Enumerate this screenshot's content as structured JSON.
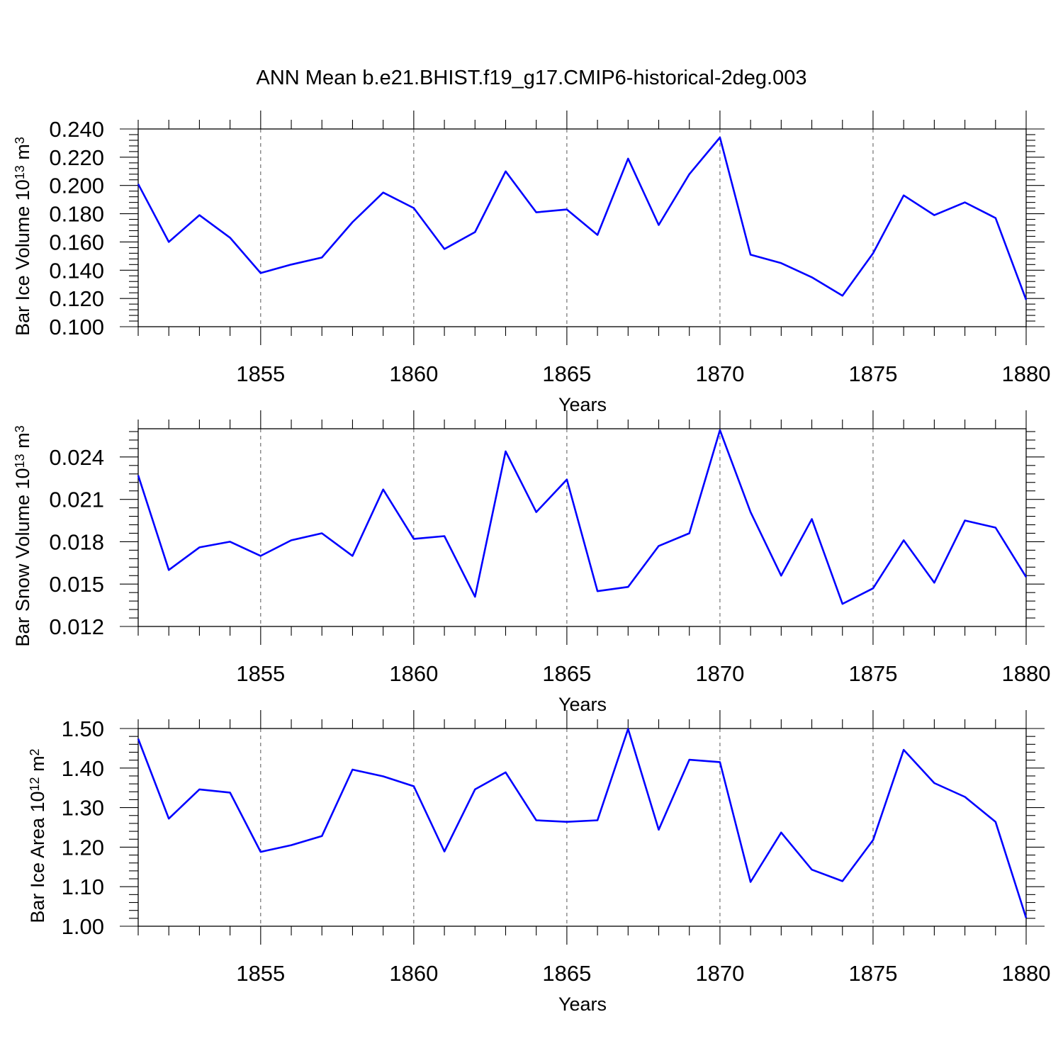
{
  "title": "ANN Mean b.e21.BHIST.f19_g17.CMIP6-historical-2deg.003",
  "colors": {
    "series": "#0000ff",
    "grid": "#555555",
    "axes": "#000000"
  },
  "chart_data": [
    {
      "type": "line",
      "xlabel": "Years",
      "ylabel": "Bar Ice Volume 10",
      "ylabel_exp": "13",
      "ylabel_unit": " m",
      "ylabel_unit_exp": "3",
      "xlim": [
        1851,
        1880
      ],
      "ylim": [
        0.1,
        0.24
      ],
      "x_ticks": [
        1855,
        1860,
        1865,
        1870,
        1875,
        1880
      ],
      "x_tick_labels": [
        "1855",
        "1860",
        "1865",
        "1870",
        "1875",
        "1880"
      ],
      "y_ticks": [
        0.1,
        0.12,
        0.14,
        0.16,
        0.18,
        0.2,
        0.22,
        0.24
      ],
      "y_tick_labels": [
        "0.100",
        "0.120",
        "0.140",
        "0.160",
        "0.180",
        "0.200",
        "0.220",
        "0.240"
      ],
      "grid": "vertical dashed at major x ticks",
      "x": [
        1851,
        1852,
        1853,
        1854,
        1855,
        1856,
        1857,
        1858,
        1859,
        1860,
        1861,
        1862,
        1863,
        1864,
        1865,
        1866,
        1867,
        1868,
        1869,
        1870,
        1871,
        1872,
        1873,
        1874,
        1875,
        1876,
        1877,
        1878,
        1879,
        1880
      ],
      "values": [
        0.201,
        0.16,
        0.179,
        0.163,
        0.138,
        0.144,
        0.149,
        0.174,
        0.195,
        0.184,
        0.155,
        0.167,
        0.21,
        0.181,
        0.183,
        0.165,
        0.219,
        0.172,
        0.208,
        0.234,
        0.151,
        0.145,
        0.135,
        0.122,
        0.152,
        0.193,
        0.179,
        0.188,
        0.177,
        0.119
      ]
    },
    {
      "type": "line",
      "xlabel": "Years",
      "ylabel": "Bar Snow Volume 10",
      "ylabel_exp": "13",
      "ylabel_unit": " m",
      "ylabel_unit_exp": "3",
      "xlim": [
        1851,
        1880
      ],
      "ylim": [
        0.012,
        0.026
      ],
      "x_ticks": [
        1855,
        1860,
        1865,
        1870,
        1875,
        1880
      ],
      "x_tick_labels": [
        "1855",
        "1860",
        "1865",
        "1870",
        "1875",
        "1880"
      ],
      "y_ticks": [
        0.012,
        0.015,
        0.018,
        0.021,
        0.024
      ],
      "y_tick_labels": [
        "0.012",
        "0.015",
        "0.018",
        "0.021",
        "0.024"
      ],
      "grid": "vertical dashed at major x ticks",
      "x": [
        1851,
        1852,
        1853,
        1854,
        1855,
        1856,
        1857,
        1858,
        1859,
        1860,
        1861,
        1862,
        1863,
        1864,
        1865,
        1866,
        1867,
        1868,
        1869,
        1870,
        1871,
        1872,
        1873,
        1874,
        1875,
        1876,
        1877,
        1878,
        1879,
        1880
      ],
      "values": [
        0.0227,
        0.016,
        0.0176,
        0.018,
        0.017,
        0.0181,
        0.0186,
        0.017,
        0.0217,
        0.0182,
        0.0184,
        0.0141,
        0.0244,
        0.0201,
        0.0224,
        0.0145,
        0.0148,
        0.0177,
        0.0186,
        0.0259,
        0.0201,
        0.0156,
        0.0196,
        0.0136,
        0.0147,
        0.0181,
        0.0151,
        0.0195,
        0.019,
        0.0155
      ]
    },
    {
      "type": "line",
      "xlabel": "Years",
      "ylabel": "Bar Ice Area 10",
      "ylabel_exp": "12",
      "ylabel_unit": " m",
      "ylabel_unit_exp": "2",
      "xlim": [
        1851,
        1880
      ],
      "ylim": [
        1.0,
        1.5
      ],
      "x_ticks": [
        1855,
        1860,
        1865,
        1870,
        1875,
        1880
      ],
      "x_tick_labels": [
        "1855",
        "1860",
        "1865",
        "1870",
        "1875",
        "1880"
      ],
      "y_ticks": [
        1.0,
        1.1,
        1.2,
        1.3,
        1.4,
        1.5
      ],
      "y_tick_labels": [
        "1.00",
        "1.10",
        "1.20",
        "1.30",
        "1.40",
        "1.50"
      ],
      "grid": "vertical dashed at major x ticks",
      "x": [
        1851,
        1852,
        1853,
        1854,
        1855,
        1856,
        1857,
        1858,
        1859,
        1860,
        1861,
        1862,
        1863,
        1864,
        1865,
        1866,
        1867,
        1868,
        1869,
        1870,
        1871,
        1872,
        1873,
        1874,
        1875,
        1876,
        1877,
        1878,
        1879,
        1880
      ],
      "values": [
        1.474,
        1.272,
        1.346,
        1.338,
        1.188,
        1.205,
        1.228,
        1.396,
        1.379,
        1.354,
        1.189,
        1.346,
        1.389,
        1.268,
        1.264,
        1.268,
        1.499,
        1.244,
        1.421,
        1.415,
        1.112,
        1.237,
        1.143,
        1.114,
        1.218,
        1.446,
        1.362,
        1.327,
        1.264,
        1.021
      ]
    }
  ]
}
